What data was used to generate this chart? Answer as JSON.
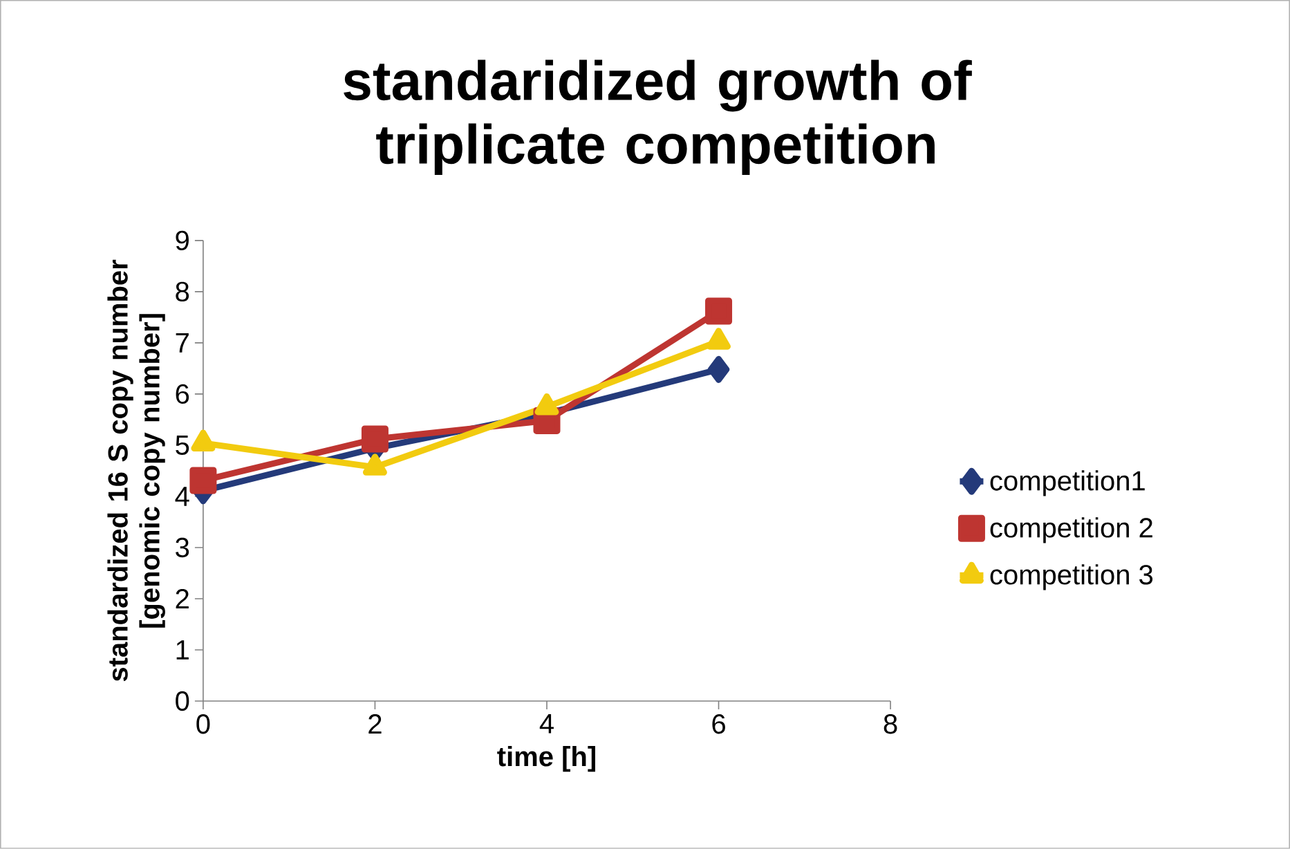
{
  "chart_data": {
    "type": "line",
    "title": "standaridized growth of triplicate competition",
    "xlabel": "time [h]",
    "ylabel": "standardized 16 S copy number [genomic copy number]",
    "x": [
      0,
      2,
      4,
      6
    ],
    "xlim": [
      0,
      8
    ],
    "xticks": [
      0,
      2,
      4,
      6,
      8
    ],
    "ylim": [
      0,
      9
    ],
    "yticks": [
      0,
      1,
      2,
      3,
      4,
      5,
      6,
      7,
      8,
      9
    ],
    "grid": false,
    "legend": "right",
    "line_style": "solid",
    "series": [
      {
        "name": "competition1",
        "color": "#243a7a",
        "marker": "diamond",
        "values": [
          4.11,
          4.94,
          5.62,
          6.48
        ]
      },
      {
        "name": "competition 2",
        "color": "#be3531",
        "marker": "square",
        "values": [
          4.31,
          5.12,
          5.48,
          7.62
        ]
      },
      {
        "name": "competition 3",
        "color": "#f2cb0f",
        "marker": "triangle",
        "values": [
          5.04,
          4.57,
          5.75,
          7.03
        ]
      }
    ]
  }
}
